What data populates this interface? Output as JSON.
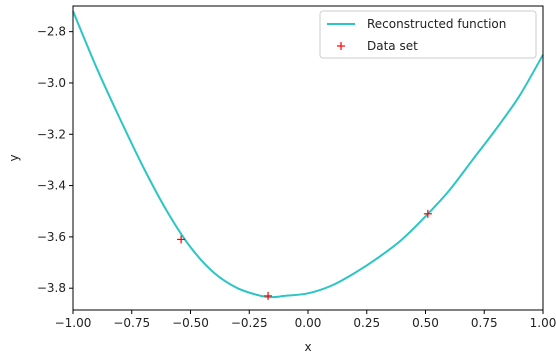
{
  "chart_data": {
    "type": "line",
    "xlabel": "x",
    "ylabel": "y",
    "xlim": [
      -1.0,
      1.0
    ],
    "ylim": [
      -3.885,
      -2.7
    ],
    "x_ticks": [
      -1.0,
      -0.75,
      -0.5,
      -0.25,
      0.0,
      0.25,
      0.5,
      0.75,
      1.0
    ],
    "x_tick_labels": [
      "−1.00",
      "−0.75",
      "−0.50",
      "−0.25",
      "0.00",
      "0.25",
      "0.50",
      "0.75",
      "1.00"
    ],
    "y_ticks": [
      -3.8,
      -3.6,
      -3.4,
      -3.2,
      -3.0,
      -2.8
    ],
    "y_tick_labels": [
      "−3.8",
      "−3.6",
      "−3.4",
      "−3.2",
      "−3.0",
      "−2.8"
    ],
    "legend_position": "top-right",
    "grid": false,
    "series": [
      {
        "name": "Reconstructed function",
        "kind": "line",
        "color": "#2cc5c5",
        "x": [
          -1.0,
          -0.9,
          -0.8,
          -0.7,
          -0.6,
          -0.5,
          -0.4,
          -0.3,
          -0.2,
          -0.15,
          -0.1,
          0.0,
          0.1,
          0.2,
          0.3,
          0.4,
          0.5,
          0.6,
          0.7,
          0.8,
          0.9,
          1.0
        ],
        "y": [
          -2.72,
          -2.94,
          -3.14,
          -3.33,
          -3.5,
          -3.64,
          -3.74,
          -3.8,
          -3.83,
          -3.835,
          -3.83,
          -3.82,
          -3.79,
          -3.74,
          -3.68,
          -3.61,
          -3.52,
          -3.42,
          -3.3,
          -3.18,
          -3.05,
          -2.89
        ]
      },
      {
        "name": "Data set",
        "kind": "scatter",
        "marker": "+",
        "color": "#ff0000",
        "x": [
          -0.54,
          -0.17,
          0.51
        ],
        "y": [
          -3.61,
          -3.83,
          -3.51
        ]
      }
    ]
  }
}
